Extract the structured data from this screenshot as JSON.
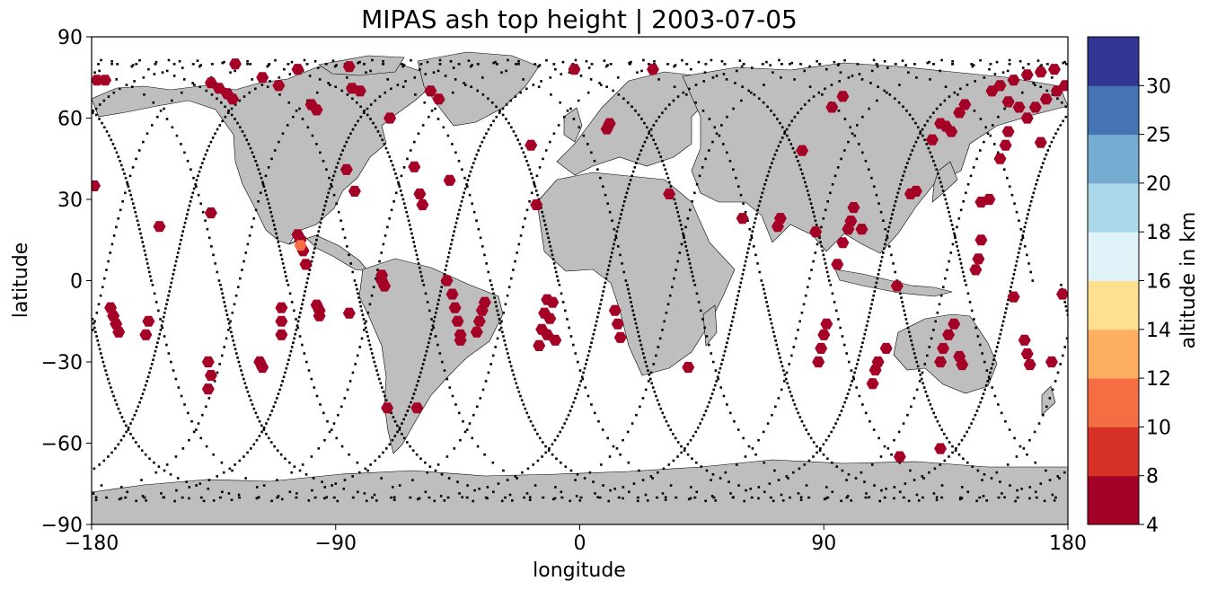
{
  "chart_data": {
    "type": "scatter",
    "title": "MIPAS ash top height | 2003-07-05",
    "xlabel": "longitude",
    "ylabel": "latitude",
    "xlim": [
      -180,
      180
    ],
    "ylim": [
      -90,
      90
    ],
    "xticks": [
      -180,
      -90,
      0,
      90,
      180
    ],
    "xtick_labels": [
      "−180",
      "−90",
      "0",
      "90",
      "180"
    ],
    "yticks": [
      -90,
      -60,
      -30,
      0,
      30,
      60,
      90
    ],
    "ytick_labels": [
      "−90",
      "−60",
      "−30",
      "0",
      "30",
      "60",
      "90"
    ],
    "grid": false,
    "basemap": {
      "land_color": "#bebebe",
      "coast_color": "#000000"
    },
    "colorbar": {
      "label": "altitude in km",
      "bounds": [
        4,
        8,
        10,
        12,
        14,
        16,
        18,
        20,
        25,
        30
      ],
      "tick_labels": [
        "4",
        "8",
        "10",
        "12",
        "14",
        "16",
        "18",
        "20",
        "25",
        "30"
      ],
      "colors": [
        "#a50026",
        "#d73027",
        "#f46d43",
        "#fdae61",
        "#fee090",
        "#e0f3f8",
        "#abd9e9",
        "#74add1",
        "#4575b4",
        "#313695"
      ]
    },
    "orbit_tracks": {
      "color": "#000000",
      "description_none": true,
      "asc_nodes_lon": [
        -158,
        -133,
        -108,
        -83,
        -58,
        -33,
        -8,
        17,
        42,
        67,
        92,
        117,
        142,
        167
      ],
      "inclination": 98.6
    },
    "ash_points": [
      {
        "lon": -178,
        "lat": 74,
        "alt": 6
      },
      {
        "lon": -175,
        "lat": 74,
        "alt": 6
      },
      {
        "lon": -179,
        "lat": 35,
        "alt": 6
      },
      {
        "lon": -173,
        "lat": -10,
        "alt": 6
      },
      {
        "lon": -172,
        "lat": -13,
        "alt": 6
      },
      {
        "lon": -171,
        "lat": -16,
        "alt": 6
      },
      {
        "lon": -170,
        "lat": -19,
        "alt": 6
      },
      {
        "lon": -159,
        "lat": -15,
        "alt": 6
      },
      {
        "lon": -160,
        "lat": -20,
        "alt": 6
      },
      {
        "lon": -155,
        "lat": 20,
        "alt": 6
      },
      {
        "lon": -136,
        "lat": 25,
        "alt": 6
      },
      {
        "lon": -137,
        "lat": -30,
        "alt": 6
      },
      {
        "lon": -136,
        "lat": -35,
        "alt": 6
      },
      {
        "lon": -137,
        "lat": -40,
        "alt": 6
      },
      {
        "lon": -127,
        "lat": 80,
        "alt": 6
      },
      {
        "lon": -136,
        "lat": 73,
        "alt": 6
      },
      {
        "lon": -133,
        "lat": 71,
        "alt": 6
      },
      {
        "lon": -130,
        "lat": 69,
        "alt": 6
      },
      {
        "lon": -128,
        "lat": 67,
        "alt": 6
      },
      {
        "lon": -117,
        "lat": 75,
        "alt": 6
      },
      {
        "lon": -111,
        "lat": 72,
        "alt": 6
      },
      {
        "lon": -104,
        "lat": 78,
        "alt": 6
      },
      {
        "lon": -118,
        "lat": -30,
        "alt": 6
      },
      {
        "lon": -117,
        "lat": -32,
        "alt": 6
      },
      {
        "lon": -110,
        "lat": -10,
        "alt": 6
      },
      {
        "lon": -110,
        "lat": -15,
        "alt": 6
      },
      {
        "lon": -110,
        "lat": -20,
        "alt": 6
      },
      {
        "lon": -99,
        "lat": 65,
        "alt": 6
      },
      {
        "lon": -97,
        "lat": 63,
        "alt": 6
      },
      {
        "lon": -104,
        "lat": 17,
        "alt": 6
      },
      {
        "lon": -103,
        "lat": 15,
        "alt": 6
      },
      {
        "lon": -102,
        "lat": 11,
        "alt": 6
      },
      {
        "lon": -101,
        "lat": 6,
        "alt": 6
      },
      {
        "lon": -103,
        "lat": 13,
        "alt": 11
      },
      {
        "lon": -97,
        "lat": -9,
        "alt": 6
      },
      {
        "lon": -96,
        "lat": -11,
        "alt": 6
      },
      {
        "lon": -96,
        "lat": -13,
        "alt": 6
      },
      {
        "lon": -85,
        "lat": 79,
        "alt": 6
      },
      {
        "lon": -84,
        "lat": 71,
        "alt": 6
      },
      {
        "lon": -81,
        "lat": 70,
        "alt": 6
      },
      {
        "lon": -86,
        "lat": 41,
        "alt": 6
      },
      {
        "lon": -83,
        "lat": 33,
        "alt": 6
      },
      {
        "lon": -85,
        "lat": -12,
        "alt": 6
      },
      {
        "lon": -73,
        "lat": 2,
        "alt": 6
      },
      {
        "lon": -73,
        "lat": 0,
        "alt": 6
      },
      {
        "lon": -72,
        "lat": -2,
        "alt": 6
      },
      {
        "lon": -71,
        "lat": -47,
        "alt": 6
      },
      {
        "lon": -70,
        "lat": 60,
        "alt": 6
      },
      {
        "lon": -61,
        "lat": 42,
        "alt": 6
      },
      {
        "lon": -59,
        "lat": 32,
        "alt": 6
      },
      {
        "lon": -58,
        "lat": 28,
        "alt": 6
      },
      {
        "lon": -60,
        "lat": -47,
        "alt": 6
      },
      {
        "lon": -55,
        "lat": 70,
        "alt": 6
      },
      {
        "lon": -52,
        "lat": 67,
        "alt": 6
      },
      {
        "lon": -48,
        "lat": 37,
        "alt": 6
      },
      {
        "lon": -49,
        "lat": 0,
        "alt": 6
      },
      {
        "lon": -47,
        "lat": -5,
        "alt": 6
      },
      {
        "lon": -46,
        "lat": -10,
        "alt": 6
      },
      {
        "lon": -45,
        "lat": -15,
        "alt": 6
      },
      {
        "lon": -44,
        "lat": -20,
        "alt": 6
      },
      {
        "lon": -44,
        "lat": -22,
        "alt": 6
      },
      {
        "lon": -35,
        "lat": -8,
        "alt": 6
      },
      {
        "lon": -36,
        "lat": -11,
        "alt": 6
      },
      {
        "lon": -37,
        "lat": -15,
        "alt": 6
      },
      {
        "lon": -38,
        "lat": -19,
        "alt": 6
      },
      {
        "lon": -18,
        "lat": 50,
        "alt": 6
      },
      {
        "lon": -16,
        "lat": 28,
        "alt": 6
      },
      {
        "lon": -12,
        "lat": -7,
        "alt": 6
      },
      {
        "lon": -13,
        "lat": -12,
        "alt": 6
      },
      {
        "lon": -14,
        "lat": -18,
        "alt": 6
      },
      {
        "lon": -15,
        "lat": -24,
        "alt": 6
      },
      {
        "lon": -10,
        "lat": -8,
        "alt": 6
      },
      {
        "lon": -11,
        "lat": -14,
        "alt": 6
      },
      {
        "lon": -12,
        "lat": -20,
        "alt": 6
      },
      {
        "lon": -9,
        "lat": -22,
        "alt": 6
      },
      {
        "lon": -2,
        "lat": 78,
        "alt": 6
      },
      {
        "lon": 10,
        "lat": 56,
        "alt": 6
      },
      {
        "lon": 11,
        "lat": 58,
        "alt": 6
      },
      {
        "lon": 13,
        "lat": -11,
        "alt": 6
      },
      {
        "lon": 14,
        "lat": -16,
        "alt": 6
      },
      {
        "lon": 15,
        "lat": -21,
        "alt": 6
      },
      {
        "lon": 27,
        "lat": 78,
        "alt": 6
      },
      {
        "lon": 33,
        "lat": 32,
        "alt": 6
      },
      {
        "lon": 40,
        "lat": -32,
        "alt": 6
      },
      {
        "lon": 60,
        "lat": 23,
        "alt": 6
      },
      {
        "lon": 74,
        "lat": 23,
        "alt": 6
      },
      {
        "lon": 73,
        "lat": 20,
        "alt": 6
      },
      {
        "lon": 82,
        "lat": 48,
        "alt": 6
      },
      {
        "lon": 87,
        "lat": 18,
        "alt": 6
      },
      {
        "lon": 88,
        "lat": -30,
        "alt": 6
      },
      {
        "lon": 89,
        "lat": -25,
        "alt": 6
      },
      {
        "lon": 90,
        "lat": -20,
        "alt": 6
      },
      {
        "lon": 91,
        "lat": -16,
        "alt": 6
      },
      {
        "lon": 93,
        "lat": 64,
        "alt": 6
      },
      {
        "lon": 97,
        "lat": 68,
        "alt": 6
      },
      {
        "lon": 95,
        "lat": 6,
        "alt": 6
      },
      {
        "lon": 97,
        "lat": 14,
        "alt": 6
      },
      {
        "lon": 99,
        "lat": 19,
        "alt": 6
      },
      {
        "lon": 100,
        "lat": 22,
        "alt": 6
      },
      {
        "lon": 101,
        "lat": 27,
        "alt": 6
      },
      {
        "lon": 104,
        "lat": 19,
        "alt": 6
      },
      {
        "lon": 108,
        "lat": -38,
        "alt": 6
      },
      {
        "lon": 109,
        "lat": -33,
        "alt": 6
      },
      {
        "lon": 110,
        "lat": -30,
        "alt": 6
      },
      {
        "lon": 113,
        "lat": -25,
        "alt": 6
      },
      {
        "lon": 117,
        "lat": -2,
        "alt": 6
      },
      {
        "lon": 118,
        "lat": -65,
        "alt": 6
      },
      {
        "lon": 124,
        "lat": 33,
        "alt": 6
      },
      {
        "lon": 122,
        "lat": 32,
        "alt": 6
      },
      {
        "lon": 130,
        "lat": 52,
        "alt": 6
      },
      {
        "lon": 133,
        "lat": 58,
        "alt": 6
      },
      {
        "lon": 135,
        "lat": 57,
        "alt": 6
      },
      {
        "lon": 137,
        "lat": 55,
        "alt": 6
      },
      {
        "lon": 133,
        "lat": -30,
        "alt": 6
      },
      {
        "lon": 134,
        "lat": -25,
        "alt": 6
      },
      {
        "lon": 136,
        "lat": -20,
        "alt": 6
      },
      {
        "lon": 138,
        "lat": -16,
        "alt": 6
      },
      {
        "lon": 140,
        "lat": -28,
        "alt": 6
      },
      {
        "lon": 141,
        "lat": -31,
        "alt": 6
      },
      {
        "lon": 133,
        "lat": -62,
        "alt": 6
      },
      {
        "lon": 140,
        "lat": 62,
        "alt": 6
      },
      {
        "lon": 142,
        "lat": 65,
        "alt": 6
      },
      {
        "lon": 148,
        "lat": 29,
        "alt": 6
      },
      {
        "lon": 151,
        "lat": 30,
        "alt": 6
      },
      {
        "lon": 146,
        "lat": 4,
        "alt": 6
      },
      {
        "lon": 147,
        "lat": 8,
        "alt": 6
      },
      {
        "lon": 148,
        "lat": 15,
        "alt": 6
      },
      {
        "lon": 155,
        "lat": 45,
        "alt": 6
      },
      {
        "lon": 157,
        "lat": 50,
        "alt": 6
      },
      {
        "lon": 158,
        "lat": 55,
        "alt": 6
      },
      {
        "lon": 152,
        "lat": 70,
        "alt": 6
      },
      {
        "lon": 155,
        "lat": 72,
        "alt": 6
      },
      {
        "lon": 160,
        "lat": 74,
        "alt": 6
      },
      {
        "lon": 165,
        "lat": 76,
        "alt": 6
      },
      {
        "lon": 170,
        "lat": 77,
        "alt": 6
      },
      {
        "lon": 175,
        "lat": 78,
        "alt": 6
      },
      {
        "lon": 158,
        "lat": 66,
        "alt": 6
      },
      {
        "lon": 162,
        "lat": 64,
        "alt": 6
      },
      {
        "lon": 165,
        "lat": 60,
        "alt": 6
      },
      {
        "lon": 168,
        "lat": 64,
        "alt": 6
      },
      {
        "lon": 172,
        "lat": 67,
        "alt": 6
      },
      {
        "lon": 176,
        "lat": 70,
        "alt": 6
      },
      {
        "lon": 179,
        "lat": 72,
        "alt": 6
      },
      {
        "lon": 160,
        "lat": -6,
        "alt": 6
      },
      {
        "lon": 164,
        "lat": -22,
        "alt": 6
      },
      {
        "lon": 165,
        "lat": -27,
        "alt": 6
      },
      {
        "lon": 166,
        "lat": -31,
        "alt": 6
      },
      {
        "lon": 170,
        "lat": 51,
        "alt": 6
      },
      {
        "lon": 174,
        "lat": -30,
        "alt": 6
      },
      {
        "lon": 178,
        "lat": -5,
        "alt": 6
      }
    ]
  }
}
